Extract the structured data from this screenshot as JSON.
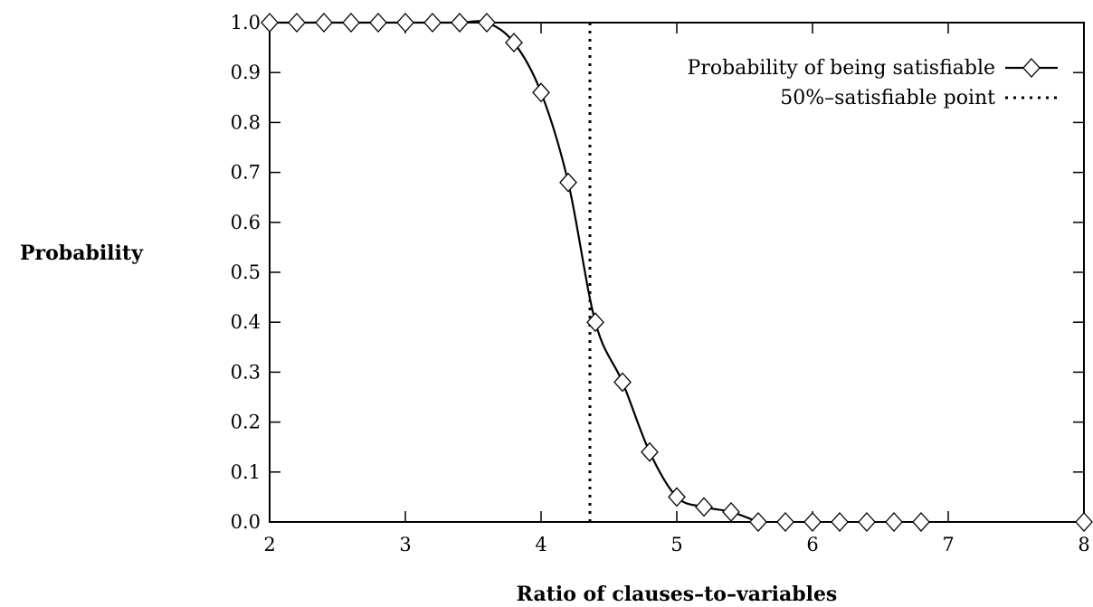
{
  "chart_data": {
    "type": "line",
    "title": "",
    "xlabel": "Ratio of clauses–to–variables",
    "ylabel": "Probability",
    "xlim": [
      2,
      8
    ],
    "ylim": [
      0,
      1
    ],
    "x_ticks": [
      "2",
      "3",
      "4",
      "5",
      "6",
      "7",
      "8"
    ],
    "y_ticks": [
      "0.0",
      "0.1",
      "0.2",
      "0.3",
      "0.4",
      "0.5",
      "0.6",
      "0.7",
      "0.8",
      "0.9",
      "1.0"
    ],
    "grid": false,
    "legend_position": "top-right",
    "series": [
      {
        "name": "Probability of being satisfiable",
        "marker": "diamond",
        "line": "solid",
        "color": "#000000",
        "x": [
          2.0,
          2.2,
          2.4,
          2.6,
          2.8,
          3.0,
          3.2,
          3.4,
          3.6,
          3.8,
          4.0,
          4.2,
          4.4,
          4.6,
          4.8,
          5.0,
          5.2,
          5.4,
          5.6,
          5.8,
          6.0,
          6.2,
          6.4,
          6.6,
          6.8,
          8.0
        ],
        "y": [
          1.0,
          1.0,
          1.0,
          1.0,
          1.0,
          1.0,
          1.0,
          1.0,
          1.0,
          0.96,
          0.86,
          0.68,
          0.4,
          0.28,
          0.14,
          0.05,
          0.03,
          0.02,
          0.0,
          0.0,
          0.0,
          0.0,
          0.0,
          0.0,
          0.0,
          0.0
        ]
      }
    ],
    "reference_lines": [
      {
        "name": "50%–satisfiable point",
        "orientation": "vertical",
        "x": 4.36,
        "style": "dotted",
        "color": "#000000"
      }
    ]
  }
}
